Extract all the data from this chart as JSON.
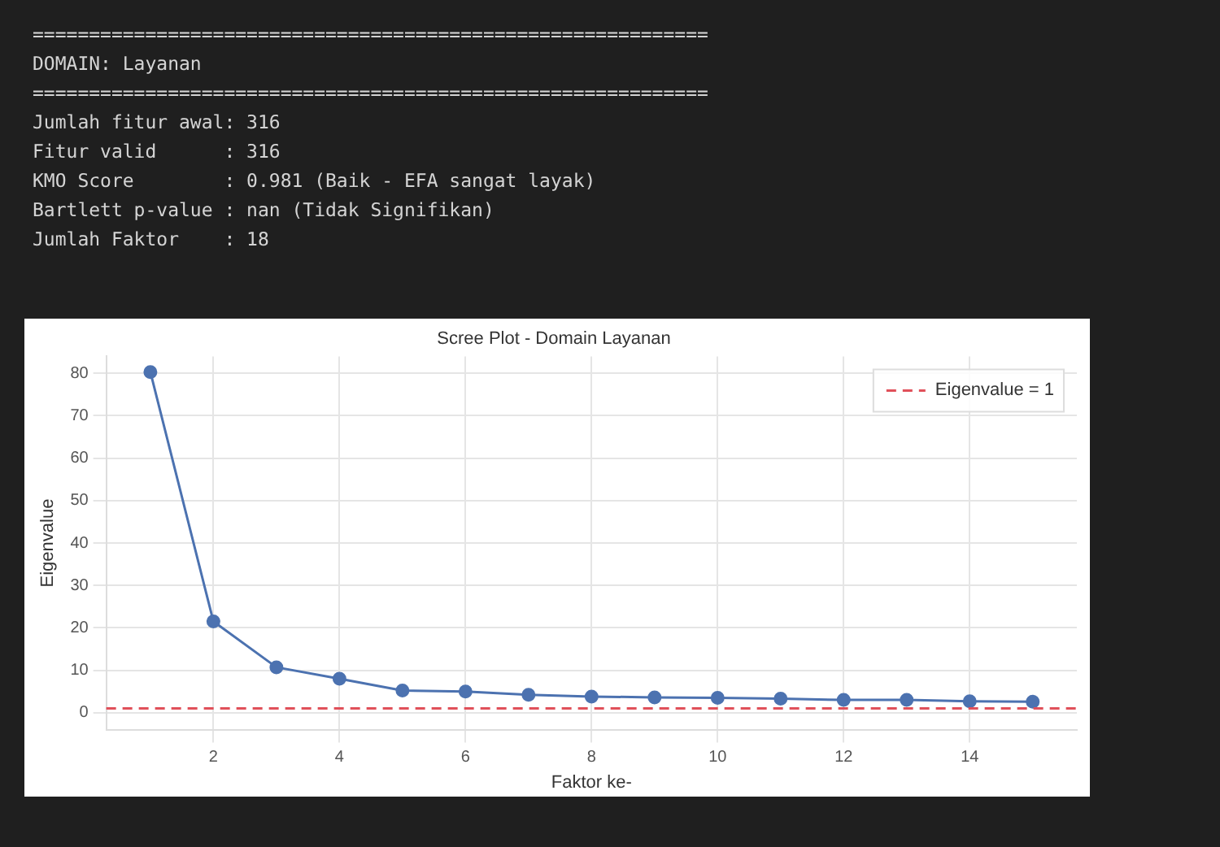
{
  "chart_data": {
    "type": "line",
    "title": "Scree Plot - Domain Layanan",
    "xlabel": "Faktor ke-",
    "ylabel": "Eigenvalue",
    "annotations": [
      "============================================================",
      "DOMAIN: Layanan",
      "============================================================",
      "Jumlah fitur awal: 316",
      "Fitur valid      : 316",
      "KMO Score        : 0.981 (Baik - EFA sangat layak)",
      "Bartlett p-value : nan (Tidak Signifikan)",
      "Jumlah Faktor    : 18"
    ],
    "x": [
      1,
      2,
      3,
      4,
      5,
      6,
      7,
      8,
      9,
      10,
      11,
      12,
      13,
      14,
      15
    ],
    "series": [
      {
        "color": "#4c72b0",
        "values": [
          80.3,
          21.5,
          10.7,
          8,
          5.2,
          5,
          4.2,
          3.8,
          3.6,
          3.5,
          3.3,
          3,
          3,
          2.7,
          2.6
        ]
      }
    ],
    "xlim": [
      0.3,
      15.7
    ],
    "xticks": [
      2,
      4,
      6,
      8,
      10,
      12,
      14
    ],
    "ylim": [
      -4,
      84
    ],
    "yticks": [
      0,
      10,
      20,
      30,
      40,
      50,
      60,
      70,
      80
    ],
    "ref_lines": [
      {
        "axis": "y",
        "value": 1,
        "label": "Eigenvalue = 1",
        "color": "#e0505a",
        "line_style": "dashed"
      }
    ],
    "grid": true,
    "legend": "top right",
    "marker": "circle",
    "line_style": "solid"
  }
}
